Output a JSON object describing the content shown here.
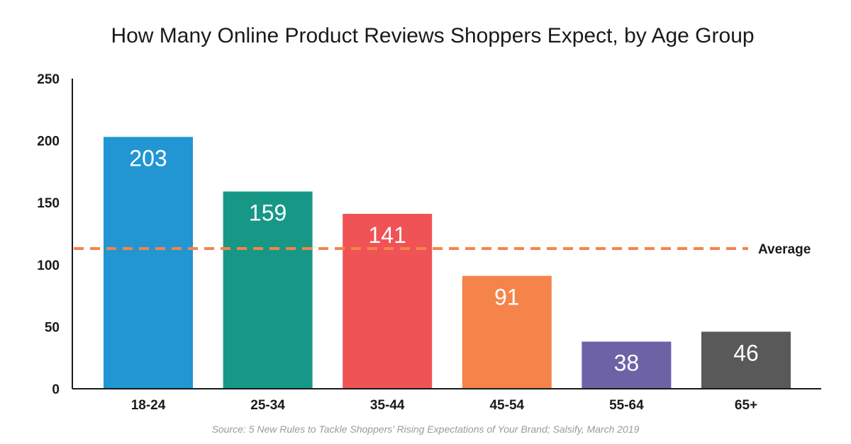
{
  "chart_data": {
    "type": "bar",
    "title": "How Many Online Product Reviews Shoppers Expect, by Age Group",
    "categories": [
      "18-24",
      "25-34",
      "35-44",
      "45-54",
      "55-64",
      "65+"
    ],
    "values": [
      203,
      159,
      141,
      91,
      38,
      46
    ],
    "data_labels": [
      "203",
      "159",
      "141",
      "91",
      "38",
      "46"
    ],
    "bar_colors": [
      "#2196d3",
      "#179887",
      "#ef5355",
      "#f5844a",
      "#6e62a6",
      "#595959"
    ],
    "ylim": [
      0,
      250
    ],
    "yticks": [
      0,
      50,
      100,
      150,
      200,
      250
    ],
    "ytick_labels": [
      "0",
      "50",
      "100",
      "150",
      "200",
      "250"
    ],
    "xlabel": "",
    "ylabel": "",
    "grid": false,
    "reference_line": {
      "label": "Average",
      "value": 113,
      "color": "#f5844a",
      "style": "dashed"
    },
    "source": "Source: 5 New Rules to Tackle Shoppers’ Rising Expectations of Your Brand; Salsify, March 2019"
  }
}
